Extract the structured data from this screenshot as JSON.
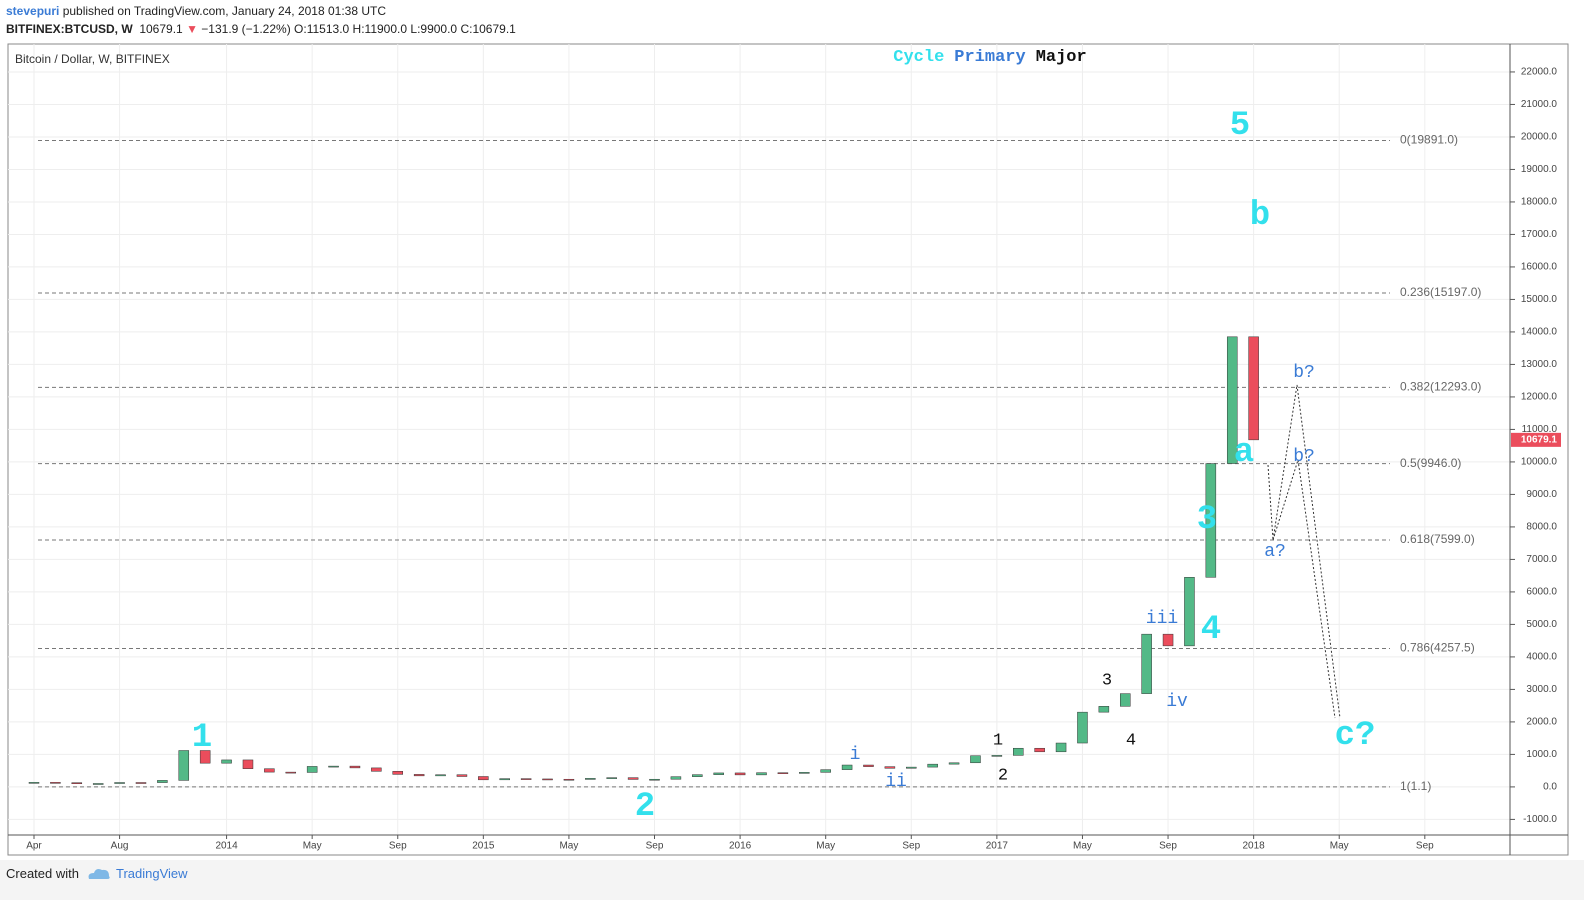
{
  "header": {
    "author": "stevepuri",
    "published": "published on TradingView.com, January 24, 2018 01:38 UTC",
    "symbol": "BITFINEX:BTCUSD, W",
    "last": "10679.1",
    "change": "−131.9 (−1.22%)",
    "open": "O:11513.0",
    "high": "H:11900.0",
    "low": "L:9900.0",
    "close": "C:10679.1"
  },
  "footer": {
    "created": "Created with",
    "brand": "TradingView"
  },
  "chart_data": {
    "type": "candlestick",
    "legend": "Bitcoin / Dollar, W, BITFINEX",
    "title_words": [
      {
        "text": "Cycle",
        "color": "#33e0ec"
      },
      {
        "text": "Primary",
        "color": "#3a7bd5"
      },
      {
        "text": "Major",
        "color": "#111111"
      }
    ],
    "x": [
      "2013-04",
      "2013-05",
      "2013-06",
      "2013-07",
      "2013-08",
      "2013-09",
      "2013-10",
      "2013-11",
      "2013-12",
      "2014-01",
      "2014-02",
      "2014-03",
      "2014-04",
      "2014-05",
      "2014-06",
      "2014-07",
      "2014-08",
      "2014-09",
      "2014-10",
      "2014-11",
      "2014-12",
      "2015-01",
      "2015-02",
      "2015-03",
      "2015-04",
      "2015-05",
      "2015-06",
      "2015-07",
      "2015-08",
      "2015-09",
      "2015-10",
      "2015-11",
      "2015-12",
      "2016-01",
      "2016-02",
      "2016-03",
      "2016-04",
      "2016-05",
      "2016-06",
      "2016-07",
      "2016-08",
      "2016-09",
      "2016-10",
      "2016-11",
      "2016-12",
      "2017-01",
      "2017-02",
      "2017-03",
      "2017-04",
      "2017-05",
      "2017-06",
      "2017-07",
      "2017-08",
      "2017-09",
      "2017-10",
      "2017-11",
      "2017-12",
      "2018-01"
    ],
    "series": [
      {
        "name": "BTCUSD",
        "up_color": "#53b987",
        "down_color": "#eb4d5c",
        "values": [
          140,
          130,
          97,
          105,
          135,
          133,
          200,
          1120,
          730,
          830,
          560,
          455,
          445,
          630,
          640,
          585,
          480,
          385,
          340,
          375,
          320,
          218,
          255,
          245,
          236,
          230,
          263,
          285,
          230,
          236,
          315,
          377,
          430,
          370,
          437,
          416,
          448,
          531,
          673,
          624,
          573,
          609,
          700,
          742,
          960,
          970,
          1190,
          1080,
          1350,
          2300,
          2480,
          2870,
          4700,
          4340,
          6450,
          9950,
          13850,
          10679.1
        ]
      }
    ],
    "last_price": {
      "value": 10679.1,
      "label": "10679.1",
      "color": "#eb4d5c"
    },
    "xlim": [
      "2013-03",
      "2018-12"
    ],
    "xticks": [
      {
        "value": "2013-04",
        "label": "Apr"
      },
      {
        "value": "2013-08",
        "label": "Aug"
      },
      {
        "value": "2014-01",
        "label": "2014"
      },
      {
        "value": "2014-05",
        "label": "May"
      },
      {
        "value": "2014-09",
        "label": "Sep"
      },
      {
        "value": "2015-01",
        "label": "2015"
      },
      {
        "value": "2015-05",
        "label": "May"
      },
      {
        "value": "2015-09",
        "label": "Sep"
      },
      {
        "value": "2016-01",
        "label": "2016"
      },
      {
        "value": "2016-05",
        "label": "May"
      },
      {
        "value": "2016-09",
        "label": "Sep"
      },
      {
        "value": "2017-01",
        "label": "2017"
      },
      {
        "value": "2017-05",
        "label": "May"
      },
      {
        "value": "2017-09",
        "label": "Sep"
      },
      {
        "value": "2018-01",
        "label": "2018"
      },
      {
        "value": "2018-05",
        "label": "May"
      },
      {
        "value": "2018-09",
        "label": "Sep"
      }
    ],
    "ylim": [
      -1480,
      22860
    ],
    "yticks": [
      {
        "value": 22000,
        "label": "22000.0"
      },
      {
        "value": 21000,
        "label": "21000.0"
      },
      {
        "value": 20000,
        "label": "20000.0"
      },
      {
        "value": 19000,
        "label": "19000.0"
      },
      {
        "value": 18000,
        "label": "18000.0"
      },
      {
        "value": 17000,
        "label": "17000.0"
      },
      {
        "value": 16000,
        "label": "16000.0"
      },
      {
        "value": 15000,
        "label": "15000.0"
      },
      {
        "value": 14000,
        "label": "14000.0"
      },
      {
        "value": 13000,
        "label": "13000.0"
      },
      {
        "value": 12000,
        "label": "12000.0"
      },
      {
        "value": 11000,
        "label": "11000.0"
      },
      {
        "value": 10000,
        "label": "10000.0"
      },
      {
        "value": 9000,
        "label": "9000.0"
      },
      {
        "value": 8000,
        "label": "8000.0"
      },
      {
        "value": 7000,
        "label": "7000.0"
      },
      {
        "value": 6000,
        "label": "6000.0"
      },
      {
        "value": 5000,
        "label": "5000.0"
      },
      {
        "value": 4000,
        "label": "4000.0"
      },
      {
        "value": 3000,
        "label": "3000.0"
      },
      {
        "value": 2000,
        "label": "2000.0"
      },
      {
        "value": 1000,
        "label": "1000.0"
      },
      {
        "value": 0,
        "label": "0.0"
      },
      {
        "value": -1000,
        "label": "-1000.0"
      }
    ],
    "grid": true,
    "fib_levels": [
      {
        "value": 19891,
        "label": "0(19891.0)"
      },
      {
        "value": 15197,
        "label": "0.236(15197.0)"
      },
      {
        "value": 12293,
        "label": "0.382(12293.0)"
      },
      {
        "value": 9946,
        "label": "0.5(9946.0)"
      },
      {
        "value": 7599,
        "label": "0.618(7599.0)"
      },
      {
        "value": 4257.5,
        "label": "0.786(4257.5)"
      },
      {
        "value": 1.1,
        "label": "1(1.1)"
      }
    ],
    "wave_labels": {
      "cycle": [
        "1",
        "2",
        "3",
        "4",
        "5",
        "a",
        "b",
        "c?"
      ],
      "primary": [
        "i",
        "ii",
        "iii",
        "iv",
        "a?",
        "b?",
        "b?"
      ],
      "major": [
        "1",
        "2",
        "3",
        "4"
      ]
    }
  }
}
